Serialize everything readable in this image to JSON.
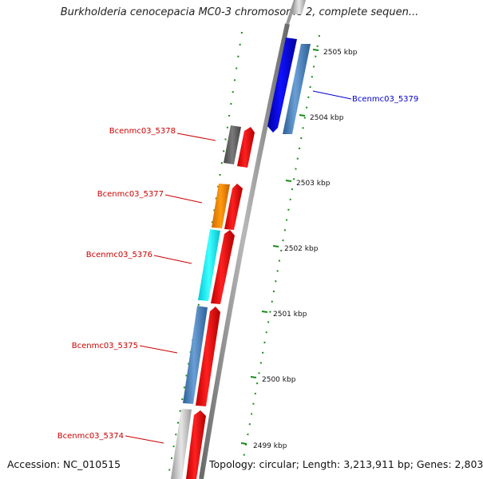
{
  "title": "Burkholderia cenocepacia MC0-3 chromosome 2, complete sequen...",
  "footer": {
    "accession": "Accession: NC_010515",
    "topology": "Topology: circular; Length: 3,213,911 bp; Genes: 2,803"
  },
  "ticks": [
    "2505 kbp",
    "2504 kbp",
    "2503 kbp",
    "2502 kbp",
    "2501 kbp",
    "2500 kbp",
    "2499 kbp"
  ],
  "gene_labels": {
    "g5379": "Bcenmc03_5379",
    "g5378": "Bcenmc03_5378",
    "g5377": "Bcenmc03_5377",
    "g5376": "Bcenmc03_5376",
    "g5375": "Bcenmc03_5375",
    "g5374": "Bcenmc03_5374"
  },
  "colors": {
    "backbone": "#8c8c8c",
    "forward_gene": "#ff0000",
    "reverse_gene": "#0000ee",
    "steelblue_feature": "#4f86c0",
    "tick": "#1a8c1a",
    "label_red": "#cc0000",
    "label_blue": "#0000cc"
  }
}
